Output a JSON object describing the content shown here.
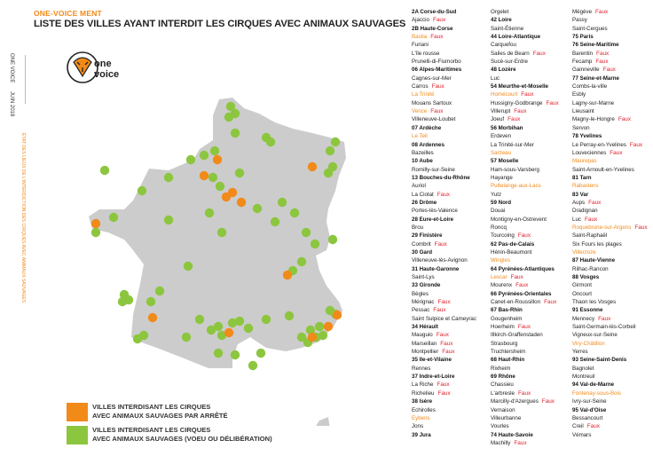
{
  "header": {
    "brand": "ONE-VOICE MENT",
    "title": "LISTE DES VILLES AYANT INTERDIT LES CIRQUES AVEC ANIMAUX SAUVAGES"
  },
  "sidebar": {
    "org": "ONE VOICE",
    "date": "JUIN 2018",
    "subtitle": "ÉTAT DES LIEUX DE L'INTERDICTION DES CIRQUES AVEC ANIMAUX SAUVAGES"
  },
  "logo": {
    "line1": "one",
    "line2": "voice"
  },
  "colors": {
    "orange": "#f28a1a",
    "green": "#8cc63f",
    "map": "#cccccc",
    "faux": "#e0212e"
  },
  "legend": [
    {
      "color": "orange",
      "text1": "VILLES INTERDISANT LES CIRQUES",
      "text2": "AVEC ANIMAUX SAUVAGES PAR ARRÊTÉ"
    },
    {
      "color": "green",
      "text1": "VILLES INTERDISANT LES CIRQUES",
      "text2": "AVEC ANIMAUX SAUVAGES (VOEU OU DÉLIBÉRATION)"
    }
  ],
  "columns": [
    [
      {
        "t": "d",
        "text": "2A Corse-du-Sud"
      },
      {
        "t": "c",
        "text": "Ajaccio",
        "faux": "Faux"
      },
      {
        "t": "d",
        "text": "2B Haute-Corse"
      },
      {
        "t": "c",
        "text": "Bastia",
        "orange": true,
        "faux": "Faux"
      },
      {
        "t": "c",
        "text": "Furiani"
      },
      {
        "t": "c",
        "text": "L'île rousse"
      },
      {
        "t": "c",
        "text": "Prunelli-di-Fiumorbo"
      },
      {
        "t": "d",
        "text": "06 Alpes-Maritimes"
      },
      {
        "t": "c",
        "text": "Cagnes-sur-Mer"
      },
      {
        "t": "c",
        "text": "Carros",
        "faux": "Faux"
      },
      {
        "t": "c",
        "text": "La Trinité",
        "orange": true
      },
      {
        "t": "c",
        "text": "Mouans Sartoux"
      },
      {
        "t": "c",
        "text": "Vence",
        "orange": true,
        "faux": "Faux"
      },
      {
        "t": "c",
        "text": "Villeneuve-Loubet"
      },
      {
        "t": "d",
        "text": "07 Ardèche"
      },
      {
        "t": "c",
        "text": "Le Teil",
        "orange": true
      },
      {
        "t": "d",
        "text": "08 Ardennes"
      },
      {
        "t": "c",
        "text": "Bazeilles"
      },
      {
        "t": "d",
        "text": "10 Aube"
      },
      {
        "t": "c",
        "text": "Romilly-sur-Seine"
      },
      {
        "t": "d",
        "text": "13 Bouches-du-Rhône"
      },
      {
        "t": "c",
        "text": "Auriol"
      },
      {
        "t": "c",
        "text": "La Ciotat",
        "faux": "Faux"
      },
      {
        "t": "d",
        "text": "26 Drôme"
      },
      {
        "t": "c",
        "text": "Portes-lès-Valence"
      },
      {
        "t": "d",
        "text": "28 Eure-et-Loire"
      },
      {
        "t": "c",
        "text": "Brou"
      },
      {
        "t": "d",
        "text": "29 Finistère"
      },
      {
        "t": "c",
        "text": "Combrit",
        "faux": "Faux"
      },
      {
        "t": "d",
        "text": "30 Gard"
      },
      {
        "t": "c",
        "text": "Villeneuve-lès-Avignon"
      },
      {
        "t": "d",
        "text": "31 Haute-Garonne"
      },
      {
        "t": "c",
        "text": "Saint-Lys"
      },
      {
        "t": "d",
        "text": "33 Gironde"
      },
      {
        "t": "c",
        "text": "Bègles"
      },
      {
        "t": "c",
        "text": "Mérignac",
        "faux": "Faux"
      },
      {
        "t": "c",
        "text": "Pessac",
        "faux": "Faux"
      },
      {
        "t": "c",
        "text": "Saint Sulpice et Cameyrac"
      },
      {
        "t": "d",
        "text": "34 Hérault"
      },
      {
        "t": "c",
        "text": "Mauguio",
        "faux": "Faux"
      },
      {
        "t": "c",
        "text": "Marseillan",
        "faux": "Faux"
      },
      {
        "t": "c",
        "text": "Montpellier",
        "faux": "Faux"
      },
      {
        "t": "d",
        "text": "35 Ile-et-Vilaine"
      },
      {
        "t": "c",
        "text": "Rennes"
      },
      {
        "t": "d",
        "text": "37 Indre-et-Loire"
      },
      {
        "t": "c",
        "text": "La Riche",
        "faux": "Faux"
      },
      {
        "t": "c",
        "text": "Richelieu",
        "faux": "Faux"
      },
      {
        "t": "d",
        "text": "38 Isère"
      },
      {
        "t": "c",
        "text": "Echirolles"
      },
      {
        "t": "c",
        "text": "Eybens",
        "orange": true
      },
      {
        "t": "c",
        "text": "Jons"
      },
      {
        "t": "d",
        "text": "39 Jura"
      }
    ],
    [
      {
        "t": "c",
        "text": "Orgelet"
      },
      {
        "t": "d",
        "text": "42 Loire"
      },
      {
        "t": "c",
        "text": "Saint-Étienne"
      },
      {
        "t": "d",
        "text": "44 Loire-Atlantique"
      },
      {
        "t": "c",
        "text": "Carquefou"
      },
      {
        "t": "c",
        "text": "Salies de Bearn",
        "faux": "Faux"
      },
      {
        "t": "c",
        "text": "Sucé-sur-Erdre"
      },
      {
        "t": "d",
        "text": "48 Lozère"
      },
      {
        "t": "c",
        "text": "Luc"
      },
      {
        "t": "d",
        "text": "54 Meurthe-et-Moselle"
      },
      {
        "t": "c",
        "text": "Homécourt",
        "orange": true,
        "faux": "Faux"
      },
      {
        "t": "c",
        "text": "Hussigny-Godbrange",
        "faux": "Faux"
      },
      {
        "t": "c",
        "text": "Villerupt",
        "faux": "Faux"
      },
      {
        "t": "c",
        "text": "Joeuf",
        "faux": "Faux"
      },
      {
        "t": "d",
        "text": "56 Morbihan"
      },
      {
        "t": "c",
        "text": "Erdeven"
      },
      {
        "t": "c",
        "text": "La Trinité-sur-Mer"
      },
      {
        "t": "c",
        "text": "Sarzeau",
        "orange": true
      },
      {
        "t": "d",
        "text": "57 Moselle"
      },
      {
        "t": "c",
        "text": "Ham-sous-Varsberg"
      },
      {
        "t": "c",
        "text": "Hayange"
      },
      {
        "t": "c",
        "text": "Puttelange-aux-Lacs",
        "orange": true
      },
      {
        "t": "c",
        "text": "Yutz"
      },
      {
        "t": "d",
        "text": "59 Nord"
      },
      {
        "t": "c",
        "text": "Douai"
      },
      {
        "t": "c",
        "text": "Montigny-en-Ostrevent"
      },
      {
        "t": "c",
        "text": "Roncq"
      },
      {
        "t": "c",
        "text": "Tourcoing",
        "faux": "Faux"
      },
      {
        "t": "d",
        "text": "62 Pas-de-Calais"
      },
      {
        "t": "c",
        "text": "Hénin-Beaumont"
      },
      {
        "t": "c",
        "text": "Wingles",
        "orange": true
      },
      {
        "t": "d",
        "text": "64 Pyrénées-Atlantiques"
      },
      {
        "t": "c",
        "text": "Lescar",
        "orange": true,
        "faux": "Faux"
      },
      {
        "t": "c",
        "text": "Mourenx",
        "faux": "Faux"
      },
      {
        "t": "d",
        "text": "66 Pyrénées-Orientales"
      },
      {
        "t": "c",
        "text": "Canet-en-Roussillon",
        "faux": "Faux"
      },
      {
        "t": "d",
        "text": "67 Bas-Rhin"
      },
      {
        "t": "c",
        "text": "Gougenheim"
      },
      {
        "t": "c",
        "text": "Hoerheim",
        "faux": "Faux"
      },
      {
        "t": "c",
        "text": "Illkirch-Graffenstaden"
      },
      {
        "t": "c",
        "text": "Strasbourg"
      },
      {
        "t": "c",
        "text": "Truchtersheim"
      },
      {
        "t": "d",
        "text": "68 Haut-Rhin"
      },
      {
        "t": "c",
        "text": "Rixheim"
      },
      {
        "t": "d",
        "text": "69 Rhône"
      },
      {
        "t": "c",
        "text": "Chassieu"
      },
      {
        "t": "c",
        "text": "L'arbresle",
        "faux": "Faux"
      },
      {
        "t": "c",
        "text": "Marcilly-d'Azergues",
        "faux": "Faux"
      },
      {
        "t": "c",
        "text": "Vernaison"
      },
      {
        "t": "c",
        "text": "Villeurbanne"
      },
      {
        "t": "c",
        "text": "Vourles"
      },
      {
        "t": "d",
        "text": "74 Haute-Savoie"
      },
      {
        "t": "c",
        "text": "Machilly",
        "faux": "Faux"
      }
    ],
    [
      {
        "t": "c",
        "text": "Mégève",
        "faux": "Faux"
      },
      {
        "t": "c",
        "text": "Passy"
      },
      {
        "t": "c",
        "text": "Saint-Cergues"
      },
      {
        "t": "d",
        "text": "75 Paris"
      },
      {
        "t": "d",
        "text": "76 Seine-Maritime"
      },
      {
        "t": "c",
        "text": "Barentin",
        "faux": "Faux"
      },
      {
        "t": "c",
        "text": "Fecamp",
        "faux": "Faux"
      },
      {
        "t": "c",
        "text": "Gainneville",
        "faux": "Faux"
      },
      {
        "t": "d",
        "text": "77 Seine-et-Marne"
      },
      {
        "t": "c",
        "text": "Combs-la-ville"
      },
      {
        "t": "c",
        "text": "Esbly"
      },
      {
        "t": "c",
        "text": "Lagny-sur-Marne"
      },
      {
        "t": "c",
        "text": "Lieusaint"
      },
      {
        "t": "c",
        "text": "Magny-le-Hongre",
        "faux": "Faux"
      },
      {
        "t": "c",
        "text": "Servon"
      },
      {
        "t": "d",
        "text": "78 Yvelines"
      },
      {
        "t": "c",
        "text": "Le Perray-en-Yvelines",
        "faux": "Faux"
      },
      {
        "t": "c",
        "text": "Louveciennes",
        "faux": "Faux"
      },
      {
        "t": "c",
        "text": "Maurepas",
        "orange": true
      },
      {
        "t": "c",
        "text": "Saint-Arnoult-en-Yvelines"
      },
      {
        "t": "d",
        "text": "81 Tarn"
      },
      {
        "t": "c",
        "text": "Rabastens",
        "orange": true
      },
      {
        "t": "d",
        "text": "83 Var"
      },
      {
        "t": "c",
        "text": "Aups",
        "faux": "Faux"
      },
      {
        "t": "c",
        "text": "Dradignan"
      },
      {
        "t": "c",
        "text": "Luc",
        "faux": "Faux"
      },
      {
        "t": "c",
        "text": "Roquebrune-sur-Argens",
        "orange": true,
        "faux": "Faux"
      },
      {
        "t": "c",
        "text": "Saint-Raphaël"
      },
      {
        "t": "c",
        "text": "Six Fours les plages"
      },
      {
        "t": "c",
        "text": "Villecroze",
        "orange": true
      },
      {
        "t": "d",
        "text": "87 Haute-Vienne"
      },
      {
        "t": "c",
        "text": "Rilhac-Rancon"
      },
      {
        "t": "d",
        "text": "88 Vosges"
      },
      {
        "t": "c",
        "text": "Girmont"
      },
      {
        "t": "c",
        "text": "Oncourt"
      },
      {
        "t": "c",
        "text": "Thaon les Vosges"
      },
      {
        "t": "d",
        "text": "91 Essonne"
      },
      {
        "t": "c",
        "text": "Mennecy",
        "faux": "Faux"
      },
      {
        "t": "c",
        "text": "Saint-Germain-lès-Corbeil"
      },
      {
        "t": "c",
        "text": "Vigneux-sur-Seine"
      },
      {
        "t": "c",
        "text": "Viry-Châtillon",
        "orange": true
      },
      {
        "t": "c",
        "text": "Yerres"
      },
      {
        "t": "d",
        "text": "93 Seine-Saint-Denis"
      },
      {
        "t": "c",
        "text": "Bagnolet"
      },
      {
        "t": "c",
        "text": "Montreuil"
      },
      {
        "t": "d",
        "text": "94 Val-de-Marne"
      },
      {
        "t": "c",
        "text": "Fontenay-sous-Bois",
        "orange": true
      },
      {
        "t": "c",
        "text": "Ivry-sur-Seine"
      },
      {
        "t": "d",
        "text": "95 Val-d'Oise"
      },
      {
        "t": "c",
        "text": "Bessancourt"
      },
      {
        "t": "c",
        "text": "Creil",
        "faux": "Faux"
      },
      {
        "t": "c",
        "text": "Vémars"
      }
    ]
  ],
  "map_dots": {
    "green": [
      [
        260,
        120
      ],
      [
        265,
        128
      ],
      [
        258,
        132
      ],
      [
        300,
        155
      ],
      [
        305,
        160
      ],
      [
        242,
        170
      ],
      [
        230,
        175
      ],
      [
        378,
        160
      ],
      [
        372,
        170
      ],
      [
        375,
        188
      ],
      [
        370,
        195
      ],
      [
        270,
        195
      ],
      [
        248,
        210
      ],
      [
        240,
        200
      ],
      [
        108,
        262
      ],
      [
        128,
        245
      ],
      [
        160,
        215
      ],
      [
        190,
        248
      ],
      [
        215,
        180
      ],
      [
        250,
        262
      ],
      [
        290,
        235
      ],
      [
        310,
        250
      ],
      [
        332,
        240
      ],
      [
        345,
        262
      ],
      [
        355,
        275
      ],
      [
        375,
        270
      ],
      [
        340,
        295
      ],
      [
        330,
        305
      ],
      [
        212,
        300
      ],
      [
        140,
        332
      ],
      [
        145,
        338
      ],
      [
        138,
        340
      ],
      [
        170,
        340
      ],
      [
        180,
        328
      ],
      [
        155,
        382
      ],
      [
        162,
        378
      ],
      [
        210,
        380
      ],
      [
        225,
        360
      ],
      [
        238,
        372
      ],
      [
        246,
        368
      ],
      [
        250,
        378
      ],
      [
        262,
        364
      ],
      [
        270,
        362
      ],
      [
        280,
        370
      ],
      [
        300,
        360
      ],
      [
        326,
        356
      ],
      [
        340,
        380
      ],
      [
        350,
        372
      ],
      [
        347,
        386
      ],
      [
        356,
        380
      ],
      [
        360,
        368
      ],
      [
        364,
        378
      ],
      [
        378,
        354
      ],
      [
        118,
        192
      ],
      [
        190,
        200
      ],
      [
        265,
        150
      ],
      [
        236,
        240
      ],
      [
        318,
        228
      ],
      [
        372,
        350
      ],
      [
        246,
        398
      ],
      [
        265,
        400
      ],
      [
        294,
        398
      ],
      [
        285,
        412
      ],
      [
        360,
        520
      ]
    ],
    "orange": [
      [
        108,
        252
      ],
      [
        255,
        222
      ],
      [
        262,
        217
      ],
      [
        272,
        228
      ],
      [
        230,
        198
      ],
      [
        352,
        188
      ],
      [
        245,
        180
      ],
      [
        324,
        310
      ],
      [
        258,
        375
      ],
      [
        352,
        380
      ],
      [
        370,
        368
      ],
      [
        380,
        355
      ],
      [
        172,
        358
      ]
    ]
  }
}
